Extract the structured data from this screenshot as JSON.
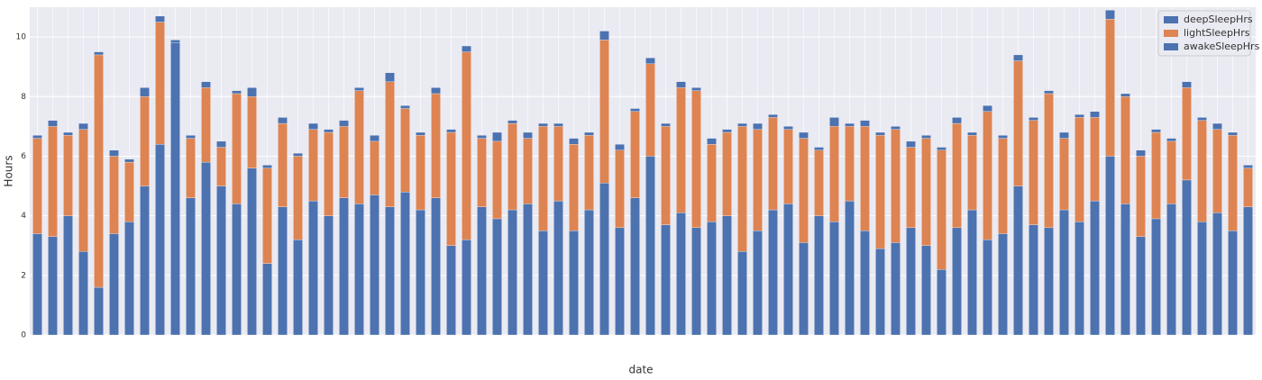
{
  "chart_data": {
    "type": "stacked_bar",
    "x_label": "date",
    "y_label": "Hours",
    "categories": [
      null,
      null,
      null,
      null,
      null,
      null,
      null,
      null,
      null,
      null,
      null,
      null,
      null,
      null,
      null,
      null,
      null,
      null,
      null,
      null,
      null,
      null,
      null,
      null,
      null,
      null,
      null,
      null,
      null,
      null,
      null,
      null,
      null,
      null,
      null,
      null,
      null,
      null,
      null,
      null,
      null,
      null,
      null,
      null,
      null,
      null,
      null,
      null,
      null,
      null,
      null,
      null,
      null,
      null,
      null,
      null,
      null,
      null,
      null,
      null,
      null,
      null,
      null,
      null,
      null,
      null,
      null,
      null,
      null,
      null,
      null,
      null,
      null,
      null,
      null,
      null,
      null,
      null,
      null,
      null
    ],
    "series": [
      {
        "name": "deepSleepHrs",
        "color": "#4c72b0",
        "values": [
          3.4,
          3.3,
          4.0,
          2.8,
          1.6,
          3.4,
          3.8,
          5.0,
          6.4,
          9.8,
          4.6,
          5.8,
          5.0,
          4.4,
          5.6,
          2.4,
          4.3,
          3.2,
          4.5,
          4.0,
          4.6,
          4.4,
          4.7,
          4.3,
          4.8,
          4.2,
          4.6,
          3.0,
          3.2,
          4.3,
          3.9,
          4.2,
          4.4,
          3.5,
          4.5,
          3.5,
          4.2,
          5.1,
          3.6,
          4.6,
          6.0,
          3.7,
          4.1,
          3.6,
          3.8,
          4.0,
          2.8,
          3.5,
          4.2,
          4.4,
          3.1,
          4.0,
          3.8,
          4.5,
          3.5,
          2.9,
          3.1,
          3.6,
          3.0,
          2.2,
          3.6,
          4.2,
          3.2,
          3.4,
          5.0,
          3.7,
          3.6,
          4.2,
          3.8,
          4.5,
          6.0,
          4.4,
          3.3,
          3.9,
          4.4,
          5.2,
          3.8,
          4.1,
          3.5,
          4.3
        ]
      },
      {
        "name": "lightSleepHrs",
        "color": "#dd8452",
        "values": [
          3.2,
          3.7,
          2.7,
          4.1,
          7.8,
          2.6,
          2.0,
          3.0,
          4.1,
          0.0,
          2.0,
          2.5,
          1.3,
          3.7,
          2.4,
          3.2,
          2.8,
          2.8,
          2.4,
          2.8,
          2.4,
          3.8,
          1.8,
          4.2,
          2.8,
          2.5,
          3.5,
          3.8,
          6.3,
          2.3,
          2.6,
          2.9,
          2.2,
          3.5,
          2.5,
          2.9,
          2.5,
          4.8,
          2.6,
          2.9,
          3.1,
          3.3,
          4.2,
          4.6,
          2.6,
          2.8,
          4.2,
          3.4,
          3.1,
          2.5,
          3.5,
          2.2,
          3.2,
          2.5,
          3.5,
          3.8,
          3.8,
          2.7,
          3.6,
          4.0,
          3.5,
          2.5,
          4.3,
          3.2,
          4.2,
          3.5,
          4.5,
          2.4,
          3.5,
          2.8,
          4.6,
          3.6,
          2.7,
          2.9,
          2.1,
          3.1,
          3.4,
          2.8,
          3.2,
          1.3
        ]
      },
      {
        "name": "awakeSleepHrs",
        "color": "#4c72b0",
        "values": [
          0.1,
          0.2,
          0.1,
          0.2,
          0.1,
          0.2,
          0.1,
          0.3,
          0.2,
          0.1,
          0.1,
          0.2,
          0.2,
          0.1,
          0.3,
          0.1,
          0.2,
          0.1,
          0.2,
          0.1,
          0.2,
          0.1,
          0.2,
          0.3,
          0.1,
          0.1,
          0.2,
          0.1,
          0.2,
          0.1,
          0.3,
          0.1,
          0.2,
          0.1,
          0.1,
          0.2,
          0.1,
          0.3,
          0.2,
          0.1,
          0.2,
          0.1,
          0.2,
          0.1,
          0.2,
          0.1,
          0.1,
          0.2,
          0.1,
          0.1,
          0.2,
          0.1,
          0.3,
          0.1,
          0.2,
          0.1,
          0.1,
          0.2,
          0.1,
          0.1,
          0.2,
          0.1,
          0.2,
          0.1,
          0.2,
          0.1,
          0.1,
          0.2,
          0.1,
          0.2,
          0.3,
          0.1,
          0.2,
          0.1,
          0.1,
          0.2,
          0.1,
          0.2,
          0.1,
          0.1
        ]
      }
    ],
    "ylim": [
      0,
      11
    ],
    "yticks": [
      0,
      2,
      4,
      6,
      8,
      10
    ],
    "grid": true,
    "legend": "upper-right"
  }
}
